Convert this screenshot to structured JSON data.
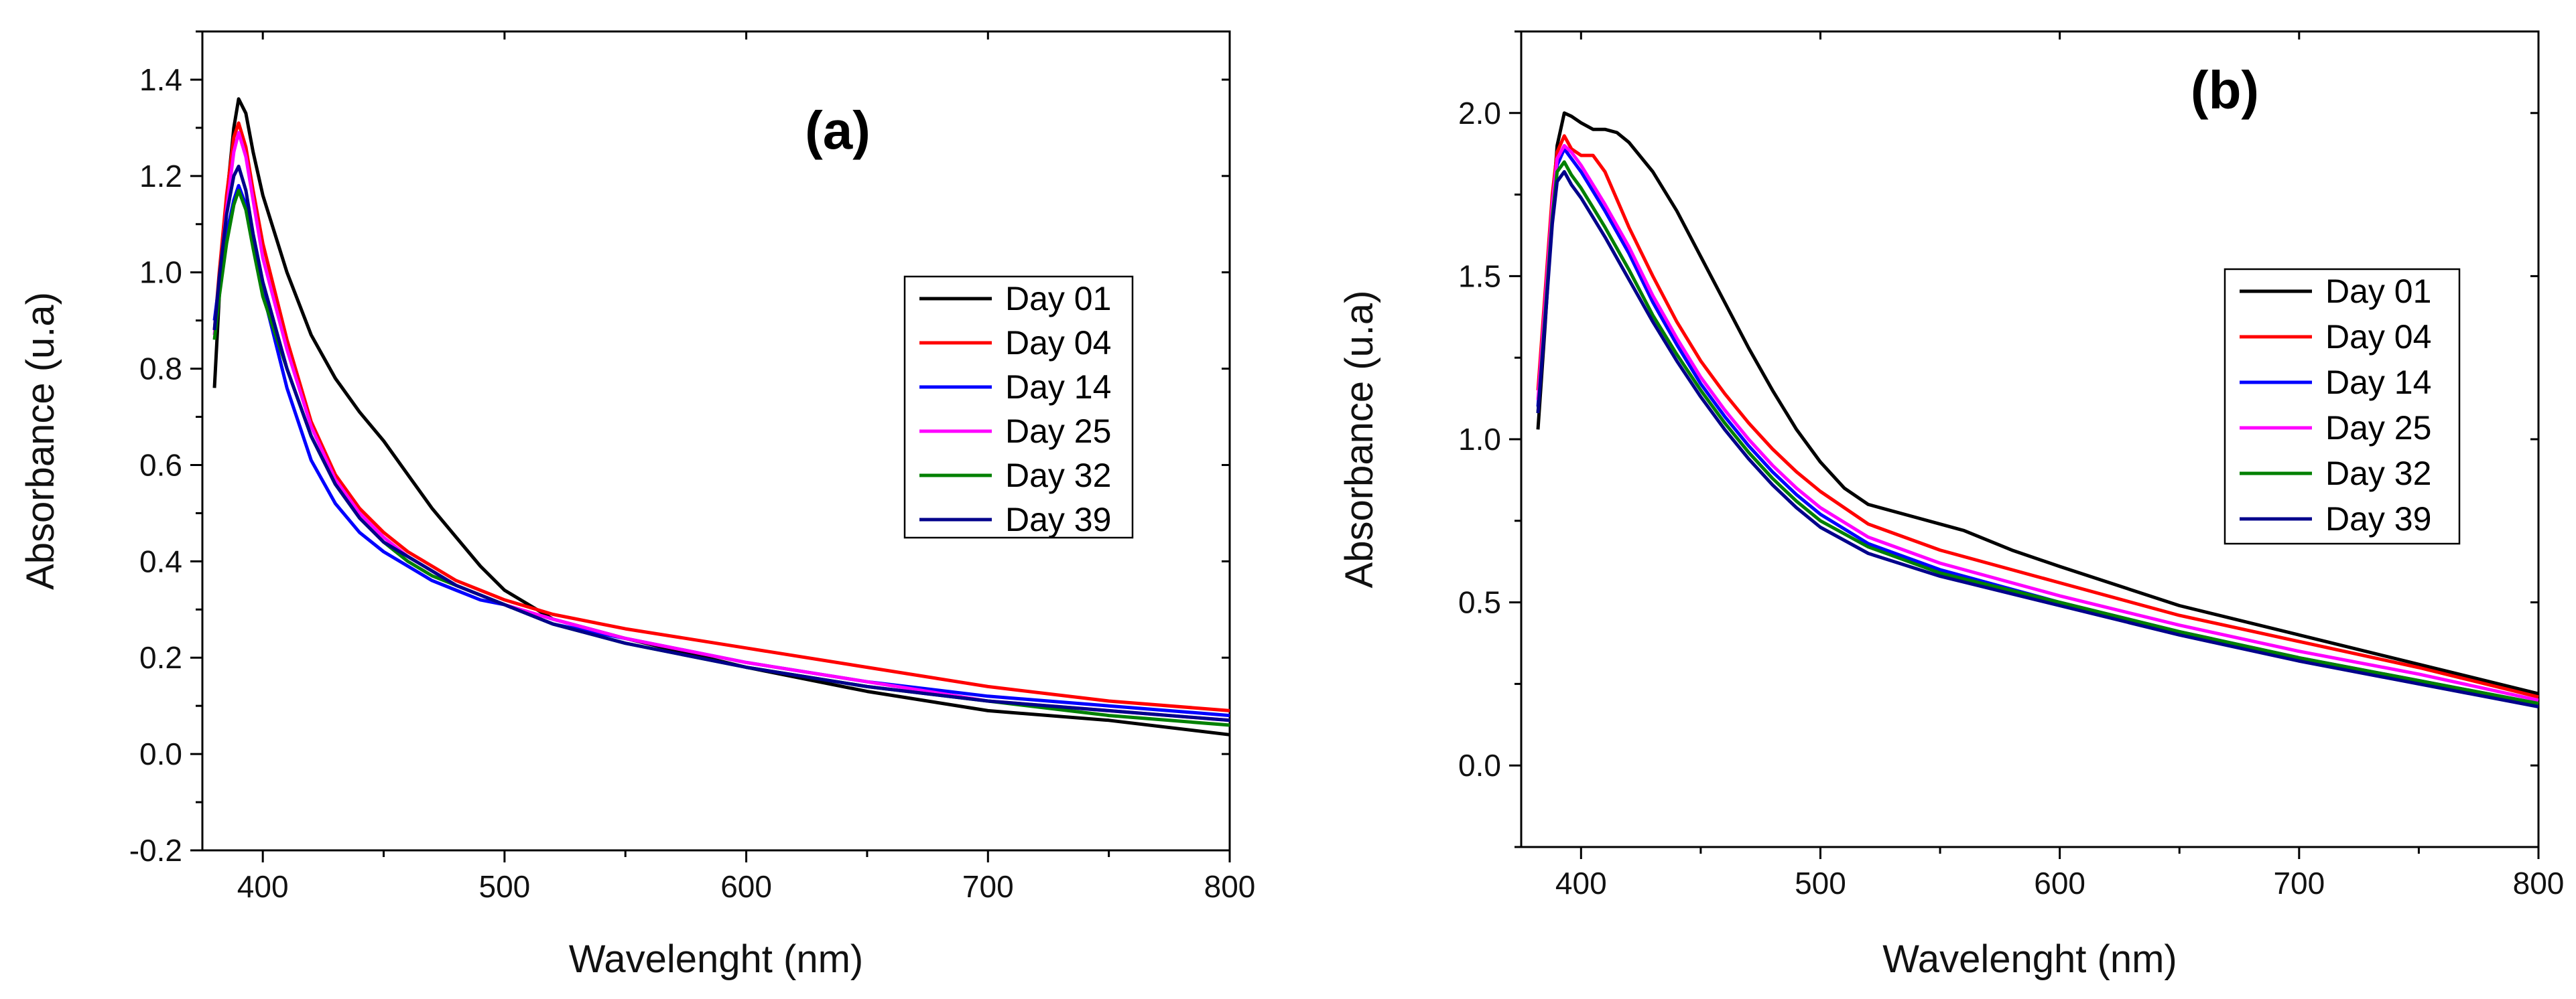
{
  "chart_data": [
    {
      "type": "line",
      "panel_label": "(a)",
      "xlabel": "Wavelenght (nm)",
      "ylabel": "Absorbance (u.a)",
      "xlim": [
        375,
        800
      ],
      "ylim": [
        -0.2,
        1.5
      ],
      "xticks": [
        400,
        500,
        600,
        700,
        800
      ],
      "yticks": [
        -0.2,
        0.0,
        0.2,
        0.4,
        0.6,
        0.8,
        1.0,
        1.2,
        1.4
      ],
      "xtick_labels": [
        "400",
        "500",
        "600",
        "700",
        "800"
      ],
      "ytick_labels": [
        "-0.2",
        "0.0",
        "0.2",
        "0.4",
        "0.6",
        "0.8",
        "1.0",
        "1.2",
        "1.4"
      ],
      "grid": false,
      "legend_position": "center-right",
      "series": [
        {
          "name": "Day 01",
          "color": "#000000",
          "x": [
            380,
            382,
            385,
            388,
            390,
            393,
            396,
            400,
            410,
            420,
            430,
            440,
            450,
            460,
            470,
            480,
            490,
            500,
            520,
            550,
            600,
            650,
            700,
            750,
            800
          ],
          "y": [
            0.76,
            0.95,
            1.15,
            1.3,
            1.36,
            1.33,
            1.25,
            1.16,
            1.0,
            0.87,
            0.78,
            0.71,
            0.65,
            0.58,
            0.51,
            0.45,
            0.39,
            0.34,
            0.28,
            0.24,
            0.18,
            0.13,
            0.09,
            0.07,
            0.04
          ]
        },
        {
          "name": "Day 04",
          "color": "#ff0000",
          "x": [
            380,
            382,
            385,
            388,
            390,
            393,
            396,
            400,
            410,
            420,
            430,
            440,
            450,
            460,
            470,
            480,
            490,
            500,
            520,
            550,
            600,
            650,
            700,
            750,
            800
          ],
          "y": [
            0.88,
            1.0,
            1.16,
            1.28,
            1.31,
            1.26,
            1.17,
            1.06,
            0.86,
            0.69,
            0.58,
            0.51,
            0.46,
            0.42,
            0.39,
            0.36,
            0.34,
            0.32,
            0.29,
            0.26,
            0.22,
            0.18,
            0.14,
            0.11,
            0.09
          ]
        },
        {
          "name": "Day 14",
          "color": "#0000ff",
          "x": [
            380,
            382,
            385,
            388,
            390,
            393,
            396,
            400,
            410,
            420,
            430,
            440,
            450,
            460,
            470,
            480,
            490,
            500,
            520,
            550,
            600,
            650,
            700,
            750,
            800
          ],
          "y": [
            0.9,
            0.98,
            1.08,
            1.15,
            1.18,
            1.14,
            1.06,
            0.96,
            0.76,
            0.61,
            0.52,
            0.46,
            0.42,
            0.39,
            0.36,
            0.34,
            0.32,
            0.31,
            0.27,
            0.24,
            0.19,
            0.15,
            0.12,
            0.1,
            0.08
          ]
        },
        {
          "name": "Day 25",
          "color": "#ff00ff",
          "x": [
            380,
            382,
            385,
            388,
            390,
            393,
            396,
            400,
            410,
            420,
            430,
            440,
            450,
            460,
            470,
            480,
            490,
            500,
            520,
            550,
            600,
            650,
            700,
            750,
            800
          ],
          "y": [
            0.87,
            0.98,
            1.13,
            1.25,
            1.29,
            1.24,
            1.15,
            1.03,
            0.84,
            0.68,
            0.57,
            0.5,
            0.45,
            0.41,
            0.38,
            0.35,
            0.33,
            0.31,
            0.28,
            0.24,
            0.19,
            0.15,
            0.11,
            0.09,
            0.07
          ]
        },
        {
          "name": "Day 32",
          "color": "#008000",
          "x": [
            380,
            382,
            385,
            388,
            390,
            393,
            396,
            400,
            410,
            420,
            430,
            440,
            450,
            460,
            470,
            480,
            490,
            500,
            520,
            550,
            600,
            650,
            700,
            750,
            800
          ],
          "y": [
            0.86,
            0.95,
            1.06,
            1.14,
            1.17,
            1.13,
            1.05,
            0.95,
            0.8,
            0.66,
            0.56,
            0.49,
            0.44,
            0.4,
            0.37,
            0.35,
            0.33,
            0.31,
            0.27,
            0.23,
            0.18,
            0.14,
            0.11,
            0.08,
            0.06
          ]
        },
        {
          "name": "Day 39",
          "color": "#00008b",
          "x": [
            380,
            382,
            385,
            388,
            390,
            393,
            396,
            400,
            410,
            420,
            430,
            440,
            450,
            460,
            470,
            480,
            490,
            500,
            520,
            550,
            600,
            650,
            700,
            750,
            800
          ],
          "y": [
            0.88,
            0.99,
            1.12,
            1.2,
            1.22,
            1.17,
            1.08,
            0.98,
            0.8,
            0.66,
            0.56,
            0.49,
            0.44,
            0.41,
            0.38,
            0.35,
            0.33,
            0.31,
            0.27,
            0.23,
            0.18,
            0.14,
            0.11,
            0.09,
            0.07
          ]
        }
      ]
    },
    {
      "type": "line",
      "panel_label": "(b)",
      "xlabel": "Wavelenght (nm)",
      "ylabel": "Absorbance (u.a)",
      "xlim": [
        375,
        800
      ],
      "ylim": [
        -0.25,
        2.25
      ],
      "xticks": [
        400,
        500,
        600,
        700,
        800
      ],
      "yticks": [
        0.0,
        0.5,
        1.0,
        1.5,
        2.0
      ],
      "xtick_labels": [
        "400",
        "500",
        "600",
        "700",
        "800"
      ],
      "ytick_labels": [
        "0.0",
        "0.5",
        "1.0",
        "1.5",
        "2.0"
      ],
      "grid": false,
      "legend_position": "center-right",
      "series": [
        {
          "name": "Day 01",
          "color": "#000000",
          "x": [
            382,
            385,
            388,
            390,
            393,
            396,
            400,
            405,
            410,
            415,
            420,
            430,
            440,
            450,
            460,
            470,
            480,
            490,
            500,
            510,
            520,
            540,
            560,
            580,
            600,
            650,
            700,
            750,
            800
          ],
          "y": [
            1.03,
            1.35,
            1.7,
            1.9,
            2.0,
            1.99,
            1.97,
            1.95,
            1.95,
            1.94,
            1.91,
            1.82,
            1.7,
            1.56,
            1.42,
            1.28,
            1.15,
            1.03,
            0.93,
            0.85,
            0.8,
            0.76,
            0.72,
            0.66,
            0.61,
            0.49,
            0.4,
            0.31,
            0.22
          ]
        },
        {
          "name": "Day 04",
          "color": "#ff0000",
          "x": [
            382,
            385,
            388,
            390,
            393,
            396,
            400,
            405,
            410,
            420,
            430,
            440,
            450,
            460,
            470,
            480,
            490,
            500,
            520,
            550,
            600,
            650,
            700,
            750,
            800
          ],
          "y": [
            1.15,
            1.45,
            1.75,
            1.88,
            1.93,
            1.89,
            1.87,
            1.87,
            1.82,
            1.65,
            1.5,
            1.36,
            1.24,
            1.14,
            1.05,
            0.97,
            0.9,
            0.84,
            0.74,
            0.66,
            0.56,
            0.46,
            0.38,
            0.3,
            0.21
          ]
        },
        {
          "name": "Day 14",
          "color": "#0000ff",
          "x": [
            382,
            385,
            388,
            390,
            393,
            396,
            400,
            405,
            410,
            420,
            430,
            440,
            450,
            460,
            470,
            480,
            490,
            500,
            520,
            550,
            600,
            650,
            700,
            750,
            800
          ],
          "y": [
            1.1,
            1.4,
            1.7,
            1.84,
            1.89,
            1.86,
            1.82,
            1.76,
            1.7,
            1.57,
            1.42,
            1.29,
            1.17,
            1.07,
            0.98,
            0.9,
            0.83,
            0.77,
            0.68,
            0.6,
            0.5,
            0.41,
            0.33,
            0.26,
            0.19
          ]
        },
        {
          "name": "Day 25",
          "color": "#ff00ff",
          "x": [
            382,
            385,
            388,
            390,
            393,
            396,
            400,
            405,
            410,
            420,
            430,
            440,
            450,
            460,
            470,
            480,
            490,
            500,
            520,
            550,
            600,
            650,
            700,
            750,
            800
          ],
          "y": [
            1.12,
            1.42,
            1.72,
            1.86,
            1.9,
            1.88,
            1.84,
            1.78,
            1.72,
            1.59,
            1.44,
            1.31,
            1.19,
            1.09,
            1.0,
            0.92,
            0.85,
            0.79,
            0.7,
            0.62,
            0.52,
            0.43,
            0.35,
            0.28,
            0.2
          ]
        },
        {
          "name": "Day 32",
          "color": "#008000",
          "x": [
            382,
            385,
            388,
            390,
            393,
            396,
            400,
            405,
            410,
            420,
            430,
            440,
            450,
            460,
            470,
            480,
            490,
            500,
            520,
            550,
            600,
            650,
            700,
            750,
            800
          ],
          "y": [
            1.08,
            1.38,
            1.68,
            1.82,
            1.85,
            1.81,
            1.77,
            1.71,
            1.65,
            1.52,
            1.38,
            1.26,
            1.15,
            1.05,
            0.96,
            0.88,
            0.81,
            0.75,
            0.67,
            0.59,
            0.5,
            0.41,
            0.33,
            0.26,
            0.19
          ]
        },
        {
          "name": "Day 39",
          "color": "#00008b",
          "x": [
            382,
            385,
            388,
            390,
            393,
            396,
            400,
            405,
            410,
            420,
            430,
            440,
            450,
            460,
            470,
            480,
            490,
            500,
            520,
            550,
            600,
            650,
            700,
            750,
            800
          ],
          "y": [
            1.08,
            1.36,
            1.66,
            1.79,
            1.82,
            1.78,
            1.74,
            1.68,
            1.62,
            1.49,
            1.36,
            1.24,
            1.13,
            1.03,
            0.94,
            0.86,
            0.79,
            0.73,
            0.65,
            0.58,
            0.49,
            0.4,
            0.32,
            0.25,
            0.18
          ]
        }
      ]
    }
  ]
}
